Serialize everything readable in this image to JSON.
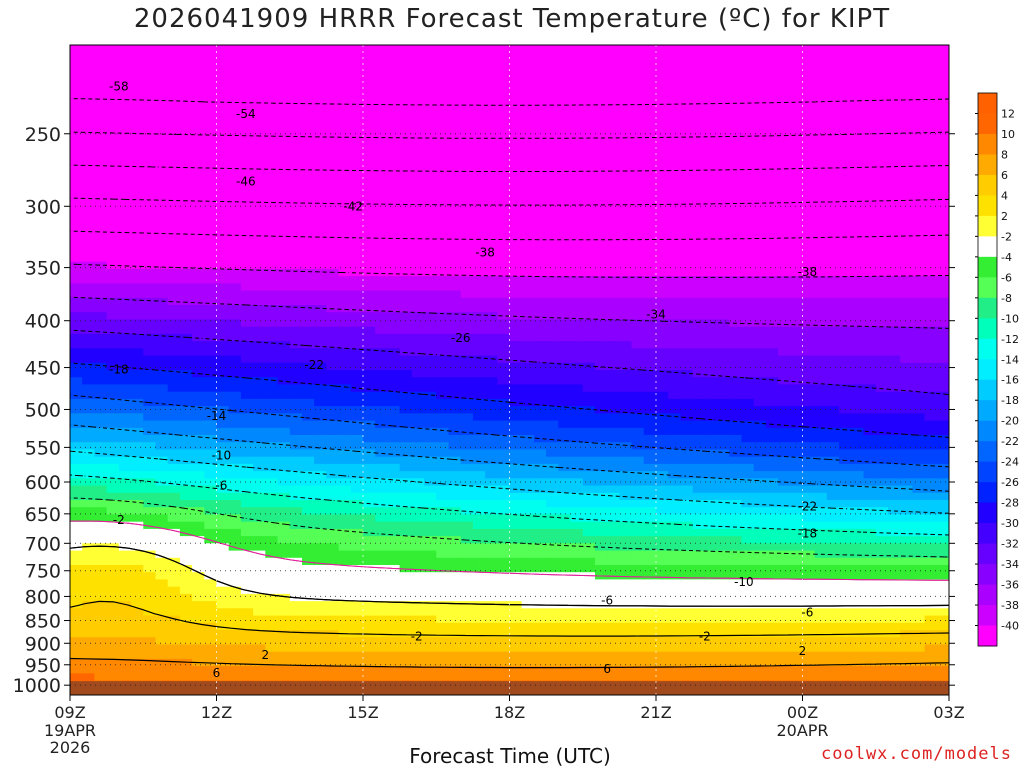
{
  "title": "2026041909 HRRR Forecast Temperature (ºC) for KIPT",
  "xlabel": "Forecast Time (UTC)",
  "credit": "coolwx.com/models",
  "colors": {
    "ground": "#a04a1e",
    "freezing_line": "#e0209a",
    "contour": "#000000",
    "grid": "#bbbbbb"
  },
  "chart_data": {
    "type": "heatmap",
    "title": "2026041909 HRRR Forecast Temperature (ºC) for KIPT",
    "xlabel": "Forecast Time (UTC)",
    "ylabel": "",
    "x_ticks": [
      {
        "label": "09Z",
        "sub": [
          "19APR",
          "2026"
        ],
        "hour": 0
      },
      {
        "label": "12Z",
        "sub": [],
        "hour": 3
      },
      {
        "label": "15Z",
        "sub": [],
        "hour": 6
      },
      {
        "label": "18Z",
        "sub": [],
        "hour": 9
      },
      {
        "label": "21Z",
        "sub": [],
        "hour": 12
      },
      {
        "label": "00Z",
        "sub": [
          "20APR"
        ],
        "hour": 15
      },
      {
        "label": "03Z",
        "sub": [],
        "hour": 18
      }
    ],
    "y_ticks": [
      "250",
      "300",
      "350",
      "400",
      "450",
      "500",
      "550",
      "600",
      "650",
      "700",
      "750",
      "800",
      "850",
      "900",
      "950",
      "1000"
    ],
    "pressure_range": [
      200,
      1025
    ],
    "y_scale": "log-pressure",
    "colorbar": {
      "labels": [
        "12",
        "10",
        "8",
        "6",
        "4",
        "2",
        "-2",
        "-4",
        "-6",
        "-8",
        "-10",
        "-12",
        "-14",
        "-16",
        "-18",
        "-20",
        "-22",
        "-24",
        "-26",
        "-28",
        "-30",
        "-32",
        "-34",
        "-36",
        "-38",
        "-40"
      ],
      "colors": [
        "#ff6600",
        "#ff8800",
        "#ffaa00",
        "#ffcc00",
        "#ffe100",
        "#ffff33",
        "#ffffff",
        "#33ee33",
        "#55ff55",
        "#22ee88",
        "#00ffbb",
        "#00ffee",
        "#00eeff",
        "#00ccff",
        "#00aaff",
        "#0088ff",
        "#0066ff",
        "#0044ff",
        "#0022ff",
        "#2200ff",
        "#4400ff",
        "#6600ff",
        "#8800ff",
        "#aa00ff",
        "#cc00ff",
        "#ff00ff"
      ]
    },
    "contour_labels": [
      {
        "text": "-58",
        "hour": 1.0,
        "p": 222
      },
      {
        "text": "-54",
        "hour": 3.6,
        "p": 238
      },
      {
        "text": "-46",
        "hour": 3.6,
        "p": 282
      },
      {
        "text": "-42",
        "hour": 5.8,
        "p": 300
      },
      {
        "text": "-38",
        "hour": 8.5,
        "p": 337
      },
      {
        "text": "-38",
        "hour": 15.1,
        "p": 354
      },
      {
        "text": "-34",
        "hour": 12.0,
        "p": 394
      },
      {
        "text": "-26",
        "hour": 8.0,
        "p": 418
      },
      {
        "text": "-22",
        "hour": 5.0,
        "p": 447
      },
      {
        "text": "-18",
        "hour": 1.0,
        "p": 452
      },
      {
        "text": "-14",
        "hour": 3.0,
        "p": 508
      },
      {
        "text": "-10",
        "hour": 3.1,
        "p": 561
      },
      {
        "text": "-6",
        "hour": 3.1,
        "p": 605
      },
      {
        "text": "-2",
        "hour": 1.0,
        "p": 660
      },
      {
        "text": "-22",
        "hour": 15.1,
        "p": 638
      },
      {
        "text": "-18",
        "hour": 15.1,
        "p": 683
      },
      {
        "text": "-10",
        "hour": 13.8,
        "p": 772
      },
      {
        "text": "-6",
        "hour": 11.0,
        "p": 808
      },
      {
        "text": "-6",
        "hour": 15.1,
        "p": 833
      },
      {
        "text": "-2",
        "hour": 7.1,
        "p": 885
      },
      {
        "text": "-2",
        "hour": 13.0,
        "p": 885
      },
      {
        "text": "2",
        "hour": 4.0,
        "p": 927
      },
      {
        "text": "2",
        "hour": 15.0,
        "p": 918
      },
      {
        "text": "6",
        "hour": 3.0,
        "p": 970
      },
      {
        "text": "6",
        "hour": 11.0,
        "p": 960
      }
    ]
  }
}
